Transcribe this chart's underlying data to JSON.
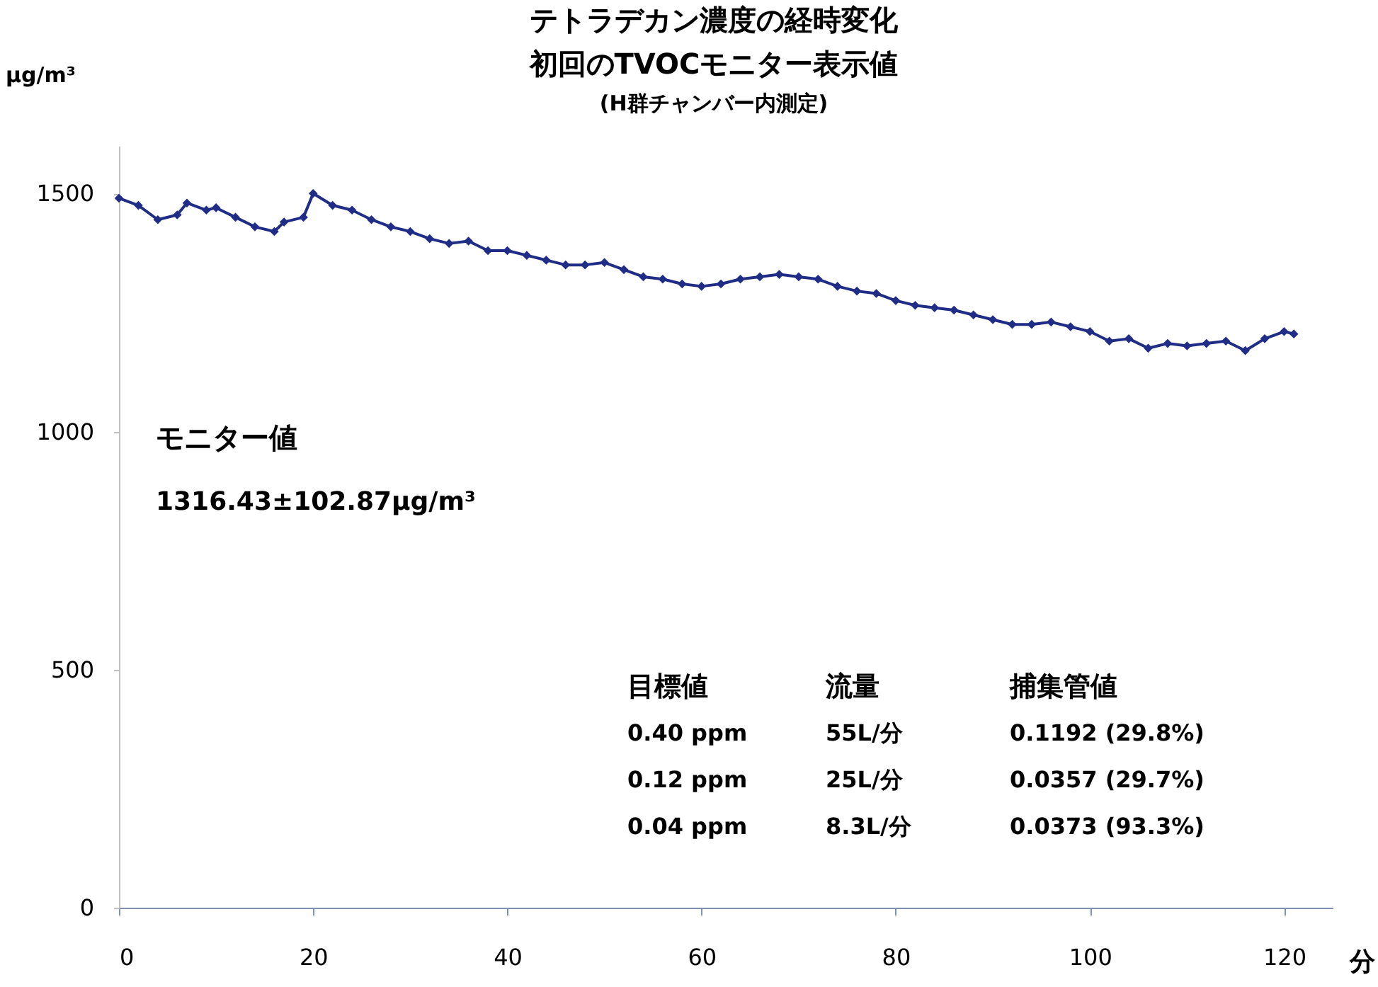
{
  "chart_data": {
    "type": "line",
    "title": [
      "テトラデカン濃度の経時変化",
      "初回のTVOCモニター表示値"
    ],
    "subtitle": "(H群チャンバー内測定)",
    "xlabel": "分",
    "ylabel": "μg/m³",
    "x": [
      0,
      2,
      4,
      6,
      7,
      9,
      10,
      12,
      14,
      16,
      17,
      19,
      20,
      22,
      24,
      26,
      28,
      30,
      32,
      34,
      36,
      38,
      40,
      42,
      44,
      46,
      48,
      50,
      52,
      54,
      56,
      58,
      60,
      62,
      64,
      66,
      68,
      70,
      72,
      74,
      76,
      78,
      80,
      82,
      84,
      86,
      88,
      90,
      92,
      94,
      96,
      98,
      100,
      102,
      104,
      106,
      108,
      110,
      112,
      114,
      116,
      118,
      120,
      121
    ],
    "series": [
      {
        "color": "#1f2d86",
        "values": [
          1490,
          1475,
          1445,
          1455,
          1480,
          1465,
          1470,
          1450,
          1430,
          1420,
          1440,
          1450,
          1500,
          1475,
          1465,
          1445,
          1430,
          1420,
          1405,
          1395,
          1400,
          1380,
          1380,
          1370,
          1360,
          1350,
          1350,
          1355,
          1340,
          1325,
          1320,
          1310,
          1305,
          1310,
          1320,
          1325,
          1330,
          1325,
          1320,
          1305,
          1295,
          1290,
          1275,
          1265,
          1260,
          1255,
          1245,
          1235,
          1225,
          1225,
          1230,
          1220,
          1210,
          1190,
          1195,
          1175,
          1185,
          1180,
          1185,
          1190,
          1170,
          1195,
          1210,
          1205
        ]
      }
    ],
    "xlim": [
      0,
      125
    ],
    "xticks": [
      0,
      20,
      40,
      60,
      80,
      100,
      120
    ],
    "ylim": [
      0,
      1600
    ],
    "yticks": [
      0,
      500,
      1000,
      1500
    ],
    "grid": false,
    "marker": "diamond",
    "line_style": "solid",
    "annotations": [
      "モニター値",
      "1316.43±102.87μg/m³",
      "目標値",
      "流量",
      "捕集管値",
      "0.40 ppm",
      "55L/分",
      "0.1192 (29.8%)",
      "0.12 ppm",
      "25L/分",
      "0.0357 (29.7%)",
      "0.04 ppm",
      "8.3L/分",
      "0.0373 (93.3%)"
    ]
  }
}
